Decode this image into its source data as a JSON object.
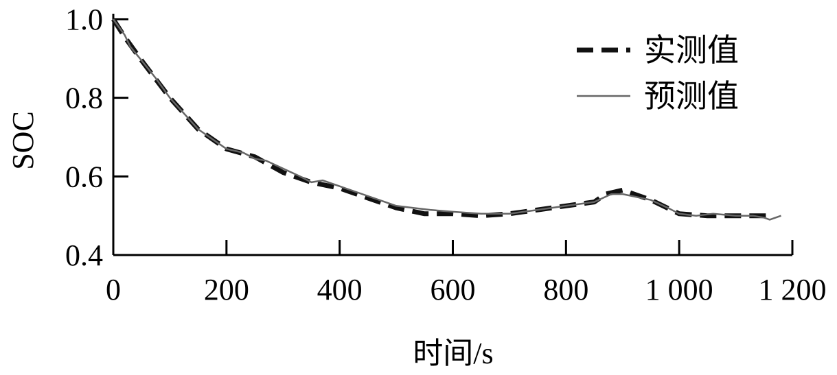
{
  "chart_data": {
    "type": "line",
    "xlabel": "时间/s",
    "ylabel": "SOC",
    "xlim": [
      0,
      1200
    ],
    "ylim": [
      0.4,
      1.0
    ],
    "x_ticks": [
      0,
      200,
      400,
      600,
      800,
      1000,
      1200
    ],
    "x_tick_labels": [
      "0",
      "200",
      "400",
      "600",
      "800",
      "1 000",
      "1 200"
    ],
    "y_ticks": [
      0.4,
      0.6,
      0.8,
      1.0
    ],
    "y_tick_labels": [
      "0.4",
      "0.6",
      "0.8",
      "1.0"
    ],
    "grid": false,
    "legend_position": "top-right",
    "series": [
      {
        "name": "实测值",
        "color": "#111111",
        "style": "dashed",
        "x": [
          0,
          20,
          50,
          100,
          150,
          200,
          250,
          300,
          350,
          400,
          450,
          500,
          550,
          600,
          650,
          700,
          750,
          800,
          850,
          870,
          900,
          950,
          1000,
          1050,
          1100,
          1150,
          1160
        ],
        "y": [
          1.0,
          0.955,
          0.895,
          0.8,
          0.72,
          0.67,
          0.65,
          0.61,
          0.585,
          0.57,
          0.545,
          0.52,
          0.505,
          0.505,
          0.5,
          0.505,
          0.515,
          0.525,
          0.535,
          0.555,
          0.565,
          0.54,
          0.505,
          0.5,
          0.5,
          0.5,
          0.5
        ]
      },
      {
        "name": "预测值",
        "color": "#666666",
        "style": "solid",
        "x": [
          0,
          10,
          20,
          30,
          50,
          75,
          100,
          150,
          200,
          230,
          250,
          270,
          300,
          330,
          350,
          370,
          400,
          420,
          450,
          480,
          500,
          530,
          560,
          600,
          650,
          700,
          750,
          800,
          850,
          880,
          900,
          950,
          980,
          1000,
          1030,
          1060,
          1100,
          1130,
          1150,
          1160,
          1180
        ],
        "y": [
          1.0,
          0.98,
          0.96,
          0.93,
          0.895,
          0.85,
          0.8,
          0.72,
          0.67,
          0.66,
          0.645,
          0.64,
          0.62,
          0.6,
          0.585,
          0.59,
          0.575,
          0.565,
          0.55,
          0.535,
          0.525,
          0.52,
          0.515,
          0.51,
          0.505,
          0.505,
          0.515,
          0.525,
          0.535,
          0.555,
          0.555,
          0.54,
          0.52,
          0.505,
          0.5,
          0.505,
          0.5,
          0.5,
          0.495,
          0.49,
          0.5
        ]
      }
    ]
  }
}
